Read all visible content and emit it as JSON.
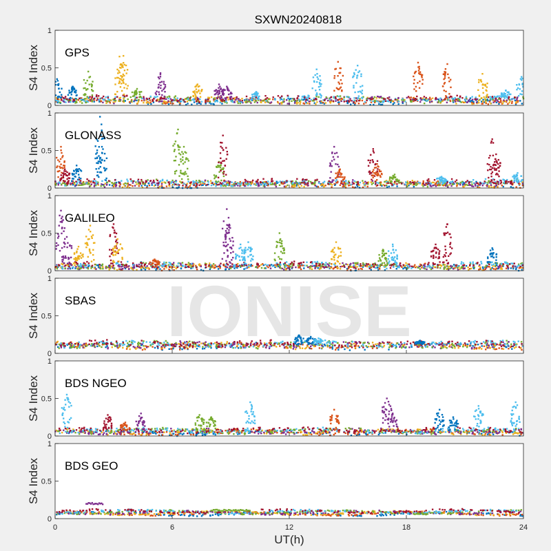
{
  "figure": {
    "title": "SXWN20240818",
    "watermark": "IONISE",
    "xlabel": "UT(h)",
    "ylabel": "S4 Index",
    "x_ticks": [
      "0",
      "6",
      "12",
      "18",
      "24"
    ],
    "y_ticks": [
      "0",
      "0.5",
      "1"
    ],
    "colors": [
      "#0072BD",
      "#D95319",
      "#EDB120",
      "#7E2F8E",
      "#77AC30",
      "#4DBEEE",
      "#A2142F"
    ]
  },
  "chart_data": [
    {
      "type": "scatter",
      "label": "GPS",
      "xlim": [
        0,
        24
      ],
      "ylim": [
        0,
        1
      ],
      "baseline": 0.07,
      "noise": 0.03,
      "spikes": [
        [
          0.1,
          0.35,
          0
        ],
        [
          0.9,
          0.25,
          0
        ],
        [
          1.7,
          0.45,
          4
        ],
        [
          3.3,
          0.65,
          2
        ],
        [
          3.5,
          0.66,
          2
        ],
        [
          4.2,
          0.22,
          4
        ],
        [
          5.4,
          0.43,
          3
        ],
        [
          7.3,
          0.28,
          2
        ],
        [
          8.4,
          0.28,
          3
        ],
        [
          8.8,
          0.25,
          3
        ],
        [
          10.3,
          0.18,
          5
        ],
        [
          13.4,
          0.48,
          5
        ],
        [
          14.5,
          0.58,
          1
        ],
        [
          15.5,
          0.53,
          5
        ],
        [
          18.6,
          0.57,
          1
        ],
        [
          20.1,
          0.55,
          1
        ],
        [
          21.9,
          0.42,
          2
        ],
        [
          23.1,
          0.2,
          5
        ],
        [
          23.9,
          0.38,
          5
        ]
      ]
    },
    {
      "type": "scatter",
      "label": "GLONASS",
      "xlim": [
        0,
        24
      ],
      "ylim": [
        0,
        1
      ],
      "baseline": 0.06,
      "noise": 0.03,
      "spikes": [
        [
          0.3,
          0.55,
          1
        ],
        [
          0.5,
          0.25,
          6
        ],
        [
          1.1,
          0.3,
          0
        ],
        [
          2.3,
          0.95,
          0
        ],
        [
          2.4,
          0.55,
          0
        ],
        [
          6.3,
          0.78,
          4
        ],
        [
          6.6,
          0.55,
          4
        ],
        [
          8.4,
          0.35,
          4
        ],
        [
          8.6,
          0.7,
          6
        ],
        [
          14.3,
          0.55,
          3
        ],
        [
          14.6,
          0.25,
          1
        ],
        [
          16.3,
          0.52,
          6
        ],
        [
          16.5,
          0.32,
          1
        ],
        [
          17.4,
          0.18,
          4
        ],
        [
          19.8,
          0.15,
          5
        ],
        [
          22.4,
          0.65,
          6
        ],
        [
          22.6,
          0.45,
          6
        ],
        [
          23.7,
          0.2,
          5
        ]
      ]
    },
    {
      "type": "scatter",
      "label": "GALILEO",
      "xlim": [
        0,
        24
      ],
      "ylim": [
        0,
        1
      ],
      "baseline": 0.06,
      "noise": 0.03,
      "spikes": [
        [
          0.3,
          0.8,
          3
        ],
        [
          0.6,
          0.45,
          3
        ],
        [
          1.2,
          0.32,
          2
        ],
        [
          1.8,
          0.6,
          2
        ],
        [
          3.0,
          0.62,
          6
        ],
        [
          3.2,
          0.42,
          2
        ],
        [
          5.1,
          0.15,
          1
        ],
        [
          8.8,
          0.82,
          3
        ],
        [
          8.9,
          0.6,
          3
        ],
        [
          9.5,
          0.35,
          5
        ],
        [
          9.9,
          0.38,
          5
        ],
        [
          11.5,
          0.5,
          4
        ],
        [
          14.4,
          0.38,
          2
        ],
        [
          16.8,
          0.28,
          4
        ],
        [
          17.3,
          0.35,
          5
        ],
        [
          19.5,
          0.35,
          6
        ],
        [
          20.1,
          0.62,
          6
        ],
        [
          22.4,
          0.3,
          0
        ]
      ]
    },
    {
      "type": "scatter",
      "label": "SBAS",
      "xlim": [
        0,
        24
      ],
      "ylim": [
        0,
        1
      ],
      "baseline": 0.11,
      "noise": 0.035,
      "spikes": [
        [
          12.5,
          0.24,
          0
        ],
        [
          13.1,
          0.22,
          0
        ],
        [
          13.5,
          0.2,
          5
        ],
        [
          18.7,
          0.17,
          0
        ]
      ]
    },
    {
      "type": "scatter",
      "label": "BDS NGEO",
      "xlim": [
        0,
        24
      ],
      "ylim": [
        0,
        1
      ],
      "baseline": 0.06,
      "noise": 0.025,
      "spikes": [
        [
          0.6,
          0.55,
          5
        ],
        [
          2.7,
          0.28,
          6
        ],
        [
          3.6,
          0.18,
          1
        ],
        [
          4.4,
          0.3,
          3
        ],
        [
          7.4,
          0.28,
          4
        ],
        [
          8.0,
          0.25,
          4
        ],
        [
          10.0,
          0.45,
          5
        ],
        [
          14.3,
          0.35,
          1
        ],
        [
          17.0,
          0.5,
          3
        ],
        [
          17.3,
          0.3,
          3
        ],
        [
          19.7,
          0.35,
          0
        ],
        [
          20.4,
          0.25,
          0
        ],
        [
          21.7,
          0.4,
          5
        ],
        [
          23.6,
          0.45,
          5
        ]
      ]
    },
    {
      "type": "scatter",
      "label": "BDS GEO",
      "xlim": [
        0,
        24
      ],
      "ylim": [
        0,
        1
      ],
      "baseline": 0.08,
      "noise": 0.012,
      "spikes": [],
      "segments": [
        [
          1.6,
          2.5,
          0.2,
          3
        ],
        [
          8.0,
          10.0,
          0.11,
          4
        ]
      ]
    }
  ]
}
